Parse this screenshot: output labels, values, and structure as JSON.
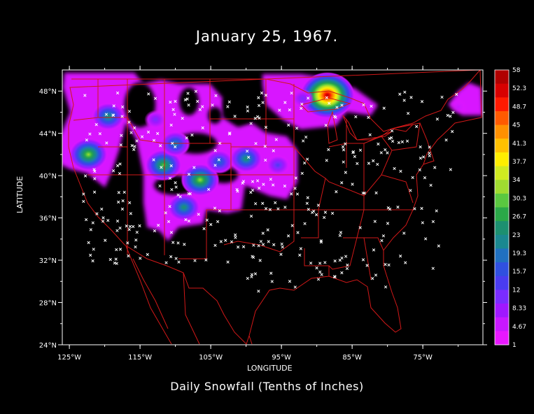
{
  "title": "January 25, 1967.",
  "subtitle": "Daily Snowfall (Tenths of Inches)",
  "axes": {
    "xlabel": "LONGITUDE",
    "ylabel": "LATITUDE",
    "lon_range": [
      -126,
      -66.5
    ],
    "lat_range": [
      24,
      50
    ],
    "x_ticks": [
      {
        "lon": -125,
        "label": "125°W"
      },
      {
        "lon": -115,
        "label": "115°W"
      },
      {
        "lon": -105,
        "label": "105°W"
      },
      {
        "lon": -95,
        "label": "95°W"
      },
      {
        "lon": -85,
        "label": "85°W"
      },
      {
        "lon": -75,
        "label": "75°W"
      }
    ],
    "y_ticks": [
      {
        "lat": 48,
        "label": "48°N"
      },
      {
        "lat": 44,
        "label": "44°N"
      },
      {
        "lat": 40,
        "label": "40°N"
      },
      {
        "lat": 36,
        "label": "36°N"
      },
      {
        "lat": 32,
        "label": "32°N"
      },
      {
        "lat": 28,
        "label": "28°N"
      },
      {
        "lat": 24,
        "label": "24°N"
      }
    ]
  },
  "colorbar": {
    "labels": [
      "58",
      "52.3",
      "48.7",
      "45",
      "41.3",
      "37.7",
      "34",
      "30.3",
      "26.7",
      "23",
      "19.3",
      "15.7",
      "12",
      "8.33",
      "4.67",
      "1"
    ],
    "colors": [
      "#b00000",
      "#d80000",
      "#ff1a00",
      "#ff5a00",
      "#ff9000",
      "#ffc000",
      "#ffee00",
      "#d0ea20",
      "#a0dc30",
      "#5ac840",
      "#2aa848",
      "#1c9070",
      "#1a8890",
      "#2070c0",
      "#3050e0",
      "#4a3cf0",
      "#7a2cff",
      "#a018ff",
      "#c818ff",
      "#e818ff"
    ]
  },
  "map": {
    "background": "#000000",
    "boundary_color": "#d01818",
    "station_color": "#ffffff"
  },
  "chart_data": {
    "type": "heatmap",
    "title": "January 25, 1967.",
    "subtitle": "Daily Snowfall (Tenths of Inches)",
    "xlabel": "LONGITUDE",
    "ylabel": "LATITUDE",
    "units": "tenths of inches",
    "scale_min": 1,
    "scale_max": 58,
    "snow_centers": [
      {
        "lon": -122.3,
        "lat": 42.0,
        "value": 34
      },
      {
        "lon": -119.5,
        "lat": 45.6,
        "value": 26
      },
      {
        "lon": -111.7,
        "lat": 41.0,
        "value": 32
      },
      {
        "lon": -106.5,
        "lat": 39.6,
        "value": 34
      },
      {
        "lon": -108.8,
        "lat": 37.0,
        "value": 26
      },
      {
        "lon": -103.8,
        "lat": 41.3,
        "value": 20
      },
      {
        "lon": -100.0,
        "lat": 41.6,
        "value": 26
      },
      {
        "lon": -112.8,
        "lat": 45.3,
        "value": 12
      },
      {
        "lon": -110.0,
        "lat": 43.0,
        "value": 22
      },
      {
        "lon": -95.5,
        "lat": 41.0,
        "value": 14
      },
      {
        "lon": -88.5,
        "lat": 47.6,
        "value": 56
      },
      {
        "lon": -92.0,
        "lat": 47.3,
        "value": 12
      },
      {
        "lon": -70.0,
        "lat": 46.5,
        "value": 6
      }
    ]
  }
}
